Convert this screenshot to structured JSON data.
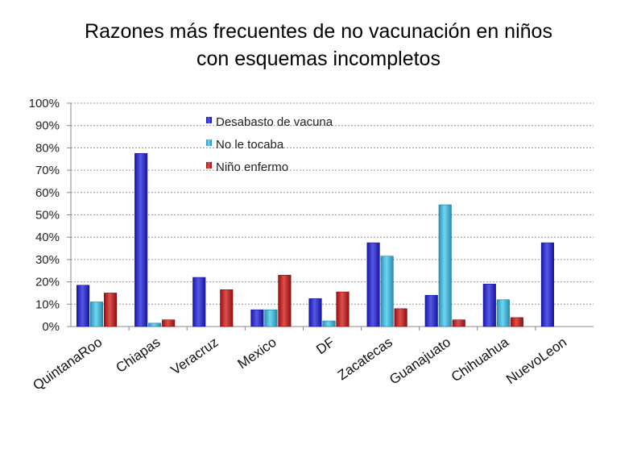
{
  "title_line1": "Razones más frecuentes de no vacunación en niños",
  "title_line2": "con esquemas incompletos",
  "chart_data": {
    "type": "bar",
    "categories": [
      "QuintanaRoo",
      "Chiapas",
      "Veracruz",
      "Mexico",
      "DF",
      "Zacatecas",
      "Guanajuato",
      "Chihuahua",
      "NuevoLeon"
    ],
    "series": [
      {
        "name": "Desabasto de vacuna",
        "color": "#1f1fe0",
        "values": [
          18.5,
          77.5,
          22,
          7.5,
          12.5,
          37.5,
          14,
          19,
          37.5
        ]
      },
      {
        "name": "No le tocaba",
        "color": "#3ec7f2",
        "values": [
          11,
          1.5,
          0,
          7.5,
          2.5,
          31.5,
          54.5,
          12,
          0
        ]
      },
      {
        "name": "Niño enfermo",
        "color": "#d01515",
        "values": [
          15,
          3,
          16.5,
          23,
          15.5,
          8,
          3,
          4,
          0
        ]
      }
    ],
    "yticks": [
      "0%",
      "10%",
      "20%",
      "30%",
      "40%",
      "50%",
      "60%",
      "70%",
      "80%",
      "90%",
      "100%"
    ],
    "ylim": [
      0,
      100
    ],
    "legend_position": "top-center",
    "grid": true
  }
}
